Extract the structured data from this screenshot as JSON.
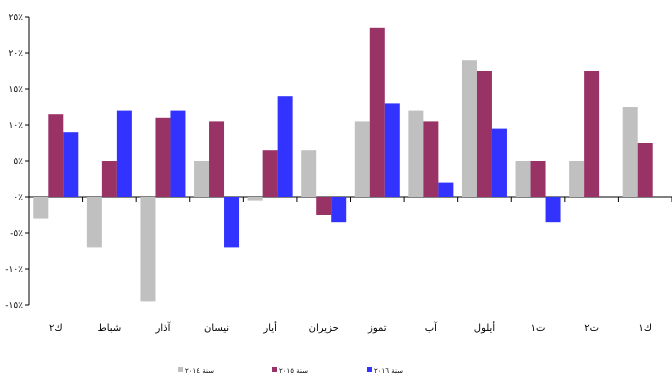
{
  "chart_data": {
    "type": "bar",
    "title": "",
    "xlabel": "",
    "ylabel": "",
    "ylim": [
      -15,
      25
    ],
    "y_ticks": [
      25,
      20,
      15,
      10,
      5,
      0,
      -5,
      -10,
      -15
    ],
    "y_tick_labels": [
      "٢٥٪",
      "٢٠٪",
      "١٥٪",
      "١٠٪",
      "٥٪",
      "٠٪",
      "-٥٪",
      "-١٠٪",
      "-١٥٪"
    ],
    "categories": [
      "ك٢",
      "شباط",
      "آذار",
      "نيسان",
      "أيار",
      "حزيران",
      "تموز",
      "آب",
      "أيلول",
      "ت١",
      "ت٢",
      "ك١"
    ],
    "grid": false,
    "legend_position": "bottom",
    "series": [
      {
        "name": "سنة ٢٠١٤",
        "color": "#c0c0c0",
        "values": [
          -3,
          -7,
          -14.5,
          5,
          -0.5,
          6.5,
          10.5,
          12,
          19,
          5,
          5,
          12.5
        ]
      },
      {
        "name": "سنة ٢٠١٥",
        "color": "#993366",
        "values": [
          11.5,
          5,
          11,
          10.5,
          6.5,
          -2.5,
          23.5,
          10.5,
          17.5,
          5,
          17.5,
          7.5
        ]
      },
      {
        "name": "سنة ٢٠١٦",
        "color": "#3333ff",
        "values": [
          9,
          12,
          12,
          -7,
          14,
          -3.5,
          13,
          2,
          9.5,
          -3.5,
          null,
          null
        ]
      }
    ]
  }
}
